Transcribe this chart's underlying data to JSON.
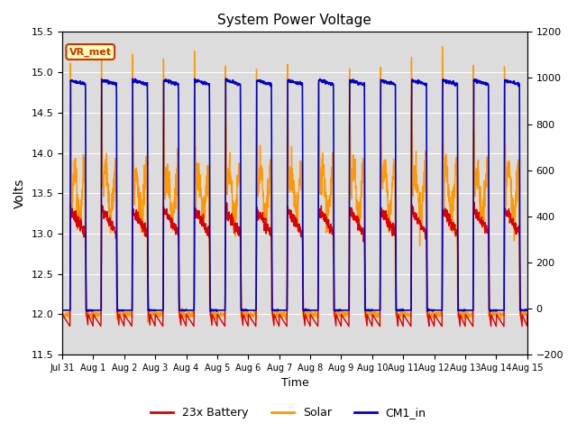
{
  "title": "System Power Voltage",
  "xlabel": "Time",
  "ylabel": "Volts",
  "ylim_left": [
    11.5,
    15.5
  ],
  "ylim_right": [
    -200,
    1200
  ],
  "yticks_left": [
    11.5,
    12.0,
    12.5,
    13.0,
    13.5,
    14.0,
    14.5,
    15.0,
    15.5
  ],
  "yticks_right": [
    -200,
    0,
    200,
    400,
    600,
    800,
    1000,
    1200
  ],
  "annotation_text": "VR_met",
  "annotation_color": "#cc3300",
  "annotation_bg": "#ffffbb",
  "annotation_border": "#cc3300",
  "series": {
    "battery": {
      "label": "23x Battery",
      "color": "#dd0000",
      "lw": 1.0
    },
    "solar": {
      "label": "Solar",
      "color": "#ff9900",
      "lw": 1.0
    },
    "cm1": {
      "label": "CM1_in",
      "color": "#0000cc",
      "lw": 1.2
    }
  },
  "tick_labels": [
    "Jul 31",
    "Aug 1",
    "Aug 2",
    "Aug 3",
    "Aug 4",
    "Aug 5",
    "Aug 6",
    "Aug 7",
    "Aug 8",
    "Aug 9",
    "Aug 10",
    "Aug 11",
    "Aug 12",
    "Aug 13",
    "Aug 14",
    "Aug 15"
  ],
  "background_color": "#dcdcdc",
  "grid_color": "white"
}
